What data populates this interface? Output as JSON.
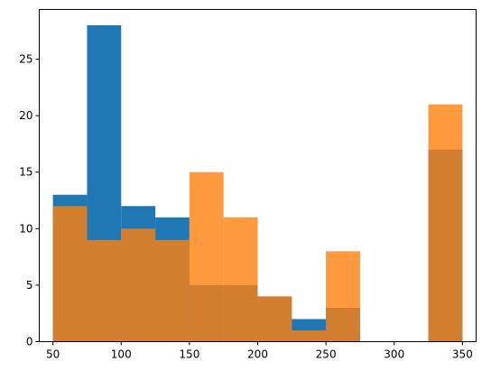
{
  "chart_data": {
    "type": "bar",
    "subtype": "overlapping-histogram",
    "title": "",
    "xlabel": "",
    "ylabel": "",
    "xlim": [
      40,
      360
    ],
    "ylim": [
      0,
      29.4
    ],
    "xticks": [
      50,
      100,
      150,
      200,
      250,
      300,
      350
    ],
    "yticks": [
      0,
      5,
      10,
      15,
      20,
      25
    ],
    "grid": false,
    "legend": "none",
    "bin_edges": [
      50,
      75,
      100,
      125,
      150,
      175,
      200,
      225,
      250,
      275,
      300,
      325,
      350
    ],
    "series": [
      {
        "color": "#1f77b4",
        "opacity": 1.0,
        "values": [
          13,
          28,
          12,
          11,
          5,
          5,
          4,
          2,
          3,
          0,
          0,
          17
        ]
      },
      {
        "color": "#ff7f0e",
        "opacity": 0.8,
        "values": [
          12,
          9,
          10,
          9,
          15,
          11,
          4,
          1,
          8,
          0,
          0,
          21
        ]
      }
    ]
  }
}
